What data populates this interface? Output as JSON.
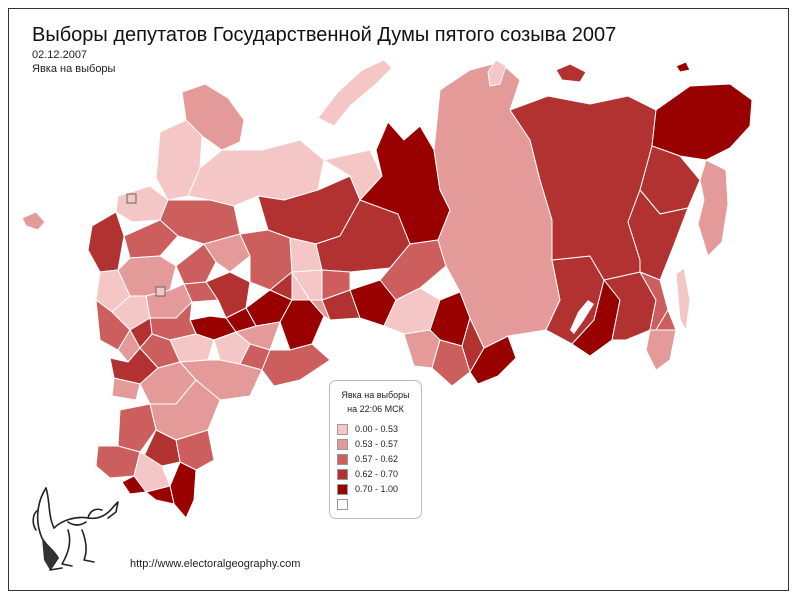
{
  "title": "Выборы депутатов Государственной Думы пятого созыва 2007",
  "date": "02.12.2007",
  "subtitle": "Явка на выборы",
  "legend": {
    "title_line1": "Явка на выборы",
    "title_line2": "на 22:06 МСК",
    "items": [
      {
        "label": "0.00 - 0.53",
        "color": "#f5c6c6"
      },
      {
        "label": "0.53 - 0.57",
        "color": "#e59a9a"
      },
      {
        "label": "0.57 - 0.62",
        "color": "#cc5e5e"
      },
      {
        "label": "0.62 - 0.70",
        "color": "#b23232"
      },
      {
        "label": "0.70 - 1.00",
        "color": "#990000"
      },
      {
        "label": "",
        "color": "#ffffff"
      }
    ]
  },
  "url": "http://www.electoralgeography.com",
  "colors": {
    "c1": "#f5c6c6",
    "c2": "#e59a9a",
    "c3": "#cc5e5e",
    "c4": "#b23232",
    "c5": "#990000",
    "border": "#ffffff"
  },
  "logo_icon": "griffin-logo-icon"
}
